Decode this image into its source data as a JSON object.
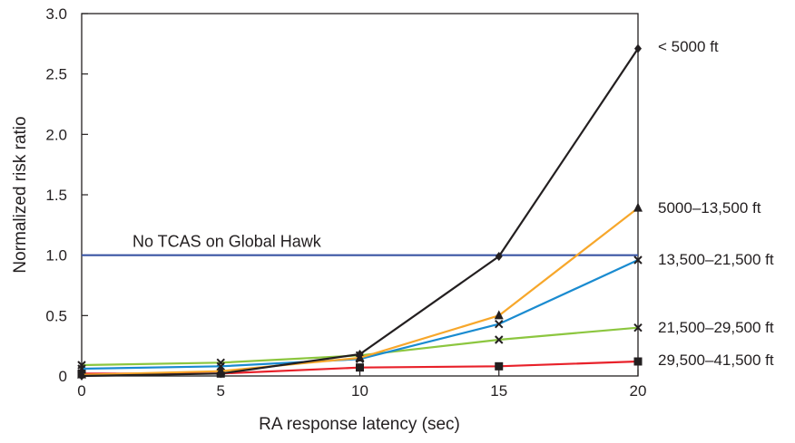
{
  "chart_data": {
    "type": "line",
    "xlabel": "RA response latency (sec)",
    "ylabel": "Normalized risk ratio",
    "xlim": [
      0,
      20
    ],
    "ylim": [
      0,
      3.0
    ],
    "x_ticks": [
      0,
      5,
      10,
      15,
      20
    ],
    "y_ticks": [
      0,
      0.5,
      1.0,
      1.5,
      2.0,
      2.5,
      3.0
    ],
    "x_tick_labels": [
      "0",
      "5",
      "10",
      "15",
      "20"
    ],
    "y_tick_labels": [
      "0",
      "0.5",
      "1.0",
      "1.5",
      "2.0",
      "2.5",
      "3.0"
    ],
    "grid": false,
    "legend": "right (labels at line ends)",
    "x": [
      0,
      5,
      10,
      15,
      20
    ],
    "series": [
      {
        "name": "< 5000 ft",
        "color": "#231f20",
        "marker": "diamond",
        "values": [
          0.0,
          0.02,
          0.18,
          0.99,
          2.71
        ]
      },
      {
        "name": "5000–13,500 ft",
        "color": "#f7a72b",
        "marker": "triangle",
        "values": [
          0.01,
          0.04,
          0.15,
          0.5,
          1.39
        ]
      },
      {
        "name": "13,500–21,500 ft",
        "color": "#1a8bd0",
        "marker": "x",
        "values": [
          0.06,
          0.08,
          0.14,
          0.43,
          0.96
        ]
      },
      {
        "name": "21,500–29,500 ft",
        "color": "#8cc63f",
        "marker": "x",
        "values": [
          0.09,
          0.11,
          0.17,
          0.3,
          0.4
        ]
      },
      {
        "name": "29,500–41,500 ft",
        "color": "#e8212a",
        "marker": "square",
        "values": [
          0.02,
          0.02,
          0.07,
          0.08,
          0.12
        ]
      }
    ],
    "reference_line": {
      "label": "No TCAS on Global Hawk",
      "value": 1.0,
      "color": "#3a55a4"
    }
  }
}
